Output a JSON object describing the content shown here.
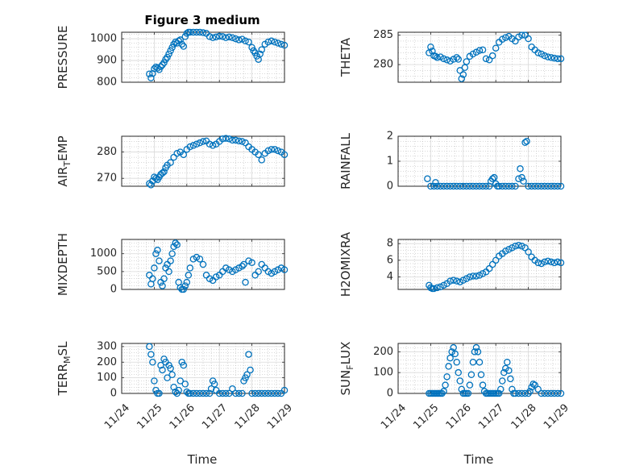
{
  "figure": {
    "title": "Figure 3 medium",
    "x_tick_labels": [
      "11/24",
      "11/25",
      "11/26",
      "11/27",
      "11/28",
      "11/29"
    ],
    "x_label": "Time",
    "marker_color": "#0072BD"
  },
  "chart_data": [
    {
      "type": "scatter",
      "name": "pressure",
      "ylabel": "PRESSURE",
      "xlim": [
        0,
        5
      ],
      "ylim": [
        800,
        1030
      ],
      "yticks": [
        800,
        900,
        1000
      ],
      "x": [
        0.85,
        0.9,
        0.95,
        1.0,
        1.05,
        1.1,
        1.15,
        1.2,
        1.25,
        1.3,
        1.35,
        1.4,
        1.45,
        1.5,
        1.55,
        1.6,
        1.65,
        1.7,
        1.75,
        1.8,
        1.85,
        1.9,
        1.95,
        2.0,
        2.05,
        2.1,
        2.2,
        2.3,
        2.4,
        2.5,
        2.6,
        2.7,
        2.8,
        2.9,
        3.0,
        3.1,
        3.2,
        3.3,
        3.4,
        3.5,
        3.6,
        3.7,
        3.8,
        3.9,
        4.0,
        4.05,
        4.1,
        4.15,
        4.2,
        4.25,
        4.3,
        4.4,
        4.5,
        4.6,
        4.7,
        4.8,
        4.9,
        5.0
      ],
      "y": [
        838,
        820,
        840,
        862,
        870,
        865,
        858,
        872,
        880,
        890,
        905,
        915,
        930,
        945,
        960,
        975,
        985,
        980,
        990,
        995,
        975,
        965,
        1010,
        1025,
        1030,
        1030,
        1030,
        1030,
        1030,
        1028,
        1025,
        1010,
        1005,
        1008,
        1012,
        1010,
        1005,
        1008,
        1005,
        1000,
        995,
        998,
        990,
        985,
        960,
        945,
        935,
        920,
        905,
        930,
        950,
        975,
        985,
        990,
        985,
        980,
        975,
        970
      ]
    },
    {
      "type": "scatter",
      "name": "theta",
      "ylabel": "THETA",
      "xlim": [
        0,
        5
      ],
      "ylim": [
        277,
        285.5
      ],
      "yticks": [
        280,
        285
      ],
      "x": [
        0.95,
        1.0,
        1.05,
        1.1,
        1.15,
        1.2,
        1.3,
        1.4,
        1.5,
        1.6,
        1.7,
        1.8,
        1.85,
        1.9,
        1.95,
        2.0,
        2.05,
        2.1,
        2.2,
        2.3,
        2.4,
        2.5,
        2.6,
        2.7,
        2.8,
        2.9,
        3.0,
        3.1,
        3.2,
        3.3,
        3.4,
        3.5,
        3.6,
        3.7,
        3.8,
        3.9,
        4.0,
        4.1,
        4.2,
        4.3,
        4.4,
        4.5,
        4.6,
        4.7,
        4.8,
        4.9,
        5.0
      ],
      "y": [
        282.0,
        283.0,
        282.3,
        281.5,
        281.4,
        281.2,
        281.3,
        281.0,
        280.8,
        280.6,
        280.9,
        281.2,
        280.9,
        279.0,
        277.6,
        278.3,
        279.5,
        280.5,
        281.4,
        281.8,
        282.1,
        282.4,
        282.5,
        281.0,
        280.8,
        281.5,
        282.8,
        283.8,
        284.3,
        284.6,
        284.8,
        284.4,
        284.0,
        284.7,
        285.0,
        285.0,
        284.4,
        283.0,
        282.5,
        282.0,
        281.8,
        281.5,
        281.3,
        281.2,
        281.1,
        281.0,
        281.0
      ]
    },
    {
      "type": "scatter",
      "name": "air_temp",
      "ylabel": "AIR_TEMP",
      "xlim": [
        0,
        5
      ],
      "ylim": [
        267,
        286
      ],
      "yticks": [
        270,
        280
      ],
      "x": [
        0.85,
        0.9,
        0.95,
        1.0,
        1.05,
        1.1,
        1.15,
        1.2,
        1.25,
        1.3,
        1.35,
        1.4,
        1.5,
        1.6,
        1.7,
        1.8,
        1.9,
        2.0,
        2.1,
        2.2,
        2.3,
        2.4,
        2.5,
        2.6,
        2.7,
        2.8,
        2.9,
        3.0,
        3.1,
        3.2,
        3.3,
        3.4,
        3.5,
        3.6,
        3.7,
        3.8,
        3.9,
        4.0,
        4.1,
        4.2,
        4.3,
        4.4,
        4.5,
        4.6,
        4.7,
        4.8,
        4.9,
        5.0
      ],
      "y": [
        268,
        267.5,
        269,
        270.5,
        270,
        269.5,
        270.5,
        271.5,
        272,
        272.5,
        274,
        275,
        276,
        278,
        279.5,
        280,
        279,
        281,
        282,
        282.5,
        283,
        283.5,
        284,
        284.2,
        283,
        282.5,
        283,
        284,
        285,
        285.2,
        285,
        284.5,
        284.5,
        284.2,
        284,
        283.5,
        282,
        281,
        280,
        279,
        277,
        279.5,
        280.5,
        281,
        281,
        280.5,
        280,
        279
      ]
    },
    {
      "type": "scatter",
      "name": "rainfall",
      "ylabel": "RAINFALL",
      "xlim": [
        0,
        5
      ],
      "ylim": [
        0,
        2
      ],
      "yticks": [
        0,
        1,
        2
      ],
      "x": [
        0.9,
        1.0,
        1.1,
        1.15,
        1.2,
        1.3,
        1.4,
        1.5,
        1.6,
        1.7,
        1.8,
        1.9,
        2.0,
        2.1,
        2.2,
        2.3,
        2.4,
        2.5,
        2.6,
        2.7,
        2.8,
        2.85,
        2.9,
        2.95,
        3.0,
        3.05,
        3.1,
        3.2,
        3.3,
        3.4,
        3.5,
        3.6,
        3.7,
        3.75,
        3.8,
        3.85,
        3.9,
        3.95,
        4.0,
        4.1,
        4.2,
        4.3,
        4.4,
        4.5,
        4.6,
        4.7,
        4.8,
        4.9,
        5.0
      ],
      "y": [
        0.3,
        0,
        0,
        0.15,
        0,
        0,
        0,
        0,
        0,
        0,
        0,
        0,
        0,
        0,
        0,
        0,
        0,
        0,
        0,
        0,
        0,
        0.2,
        0.3,
        0.35,
        0.1,
        0,
        0,
        0,
        0,
        0,
        0,
        0,
        0.3,
        0.7,
        0.35,
        0.2,
        1.75,
        1.8,
        0,
        0,
        0,
        0,
        0,
        0,
        0,
        0,
        0,
        0,
        0
      ]
    },
    {
      "type": "scatter",
      "name": "mixdepth",
      "ylabel": "MIXDEPTH",
      "xlim": [
        0,
        5
      ],
      "ylim": [
        0,
        1400
      ],
      "yticks": [
        0,
        500,
        1000
      ],
      "x": [
        0.85,
        0.9,
        0.95,
        1.0,
        1.05,
        1.1,
        1.15,
        1.2,
        1.25,
        1.3,
        1.35,
        1.4,
        1.45,
        1.5,
        1.55,
        1.6,
        1.65,
        1.7,
        1.75,
        1.8,
        1.85,
        1.9,
        1.95,
        2.0,
        2.05,
        2.1,
        2.2,
        2.3,
        2.4,
        2.5,
        2.6,
        2.7,
        2.8,
        2.9,
        3.0,
        3.1,
        3.2,
        3.3,
        3.4,
        3.5,
        3.6,
        3.7,
        3.75,
        3.8,
        3.9,
        4.0,
        4.1,
        4.2,
        4.3,
        4.4,
        4.5,
        4.6,
        4.7,
        4.8,
        4.9,
        5.0
      ],
      "y": [
        400,
        150,
        300,
        600,
        1000,
        1100,
        800,
        200,
        100,
        300,
        600,
        700,
        500,
        800,
        1000,
        1200,
        1300,
        1250,
        200,
        50,
        0,
        0,
        100,
        200,
        400,
        600,
        850,
        900,
        850,
        700,
        400,
        300,
        250,
        350,
        400,
        500,
        600,
        550,
        500,
        550,
        600,
        650,
        700,
        200,
        800,
        750,
        400,
        500,
        700,
        600,
        500,
        450,
        500,
        550,
        600,
        550
      ]
    },
    {
      "type": "scatter",
      "name": "h2omixra",
      "ylabel": "H2OMIXRA",
      "xlim": [
        0,
        5
      ],
      "ylim": [
        2.5,
        8.5
      ],
      "yticks": [
        4,
        6,
        8
      ],
      "x": [
        0.95,
        1.0,
        1.05,
        1.1,
        1.2,
        1.3,
        1.4,
        1.5,
        1.6,
        1.7,
        1.8,
        1.9,
        2.0,
        2.1,
        2.2,
        2.3,
        2.4,
        2.5,
        2.6,
        2.7,
        2.8,
        2.9,
        3.0,
        3.1,
        3.2,
        3.3,
        3.4,
        3.5,
        3.6,
        3.7,
        3.8,
        3.9,
        4.0,
        4.1,
        4.2,
        4.3,
        4.4,
        4.5,
        4.6,
        4.7,
        4.8,
        4.9,
        5.0
      ],
      "y": [
        3.0,
        2.7,
        2.6,
        2.6,
        2.7,
        2.8,
        3.0,
        3.2,
        3.5,
        3.6,
        3.5,
        3.4,
        3.6,
        3.8,
        4.0,
        4.1,
        4.1,
        4.2,
        4.4,
        4.6,
        5.0,
        5.5,
        6.0,
        6.5,
        6.8,
        7.1,
        7.3,
        7.5,
        7.7,
        7.8,
        7.7,
        7.5,
        7.0,
        6.4,
        6.0,
        5.7,
        5.6,
        5.8,
        5.9,
        5.8,
        5.7,
        5.8,
        5.7
      ]
    },
    {
      "type": "scatter",
      "name": "terr_msl",
      "ylabel": "TERR_MSL",
      "xlim": [
        0,
        5
      ],
      "ylim": [
        0,
        320
      ],
      "yticks": [
        0,
        100,
        200,
        300
      ],
      "x": [
        0.85,
        0.9,
        0.95,
        1.0,
        1.05,
        1.1,
        1.15,
        1.2,
        1.25,
        1.3,
        1.35,
        1.4,
        1.45,
        1.5,
        1.55,
        1.6,
        1.65,
        1.7,
        1.75,
        1.8,
        1.85,
        1.9,
        1.95,
        2.0,
        2.05,
        2.1,
        2.2,
        2.3,
        2.4,
        2.5,
        2.6,
        2.7,
        2.75,
        2.8,
        2.85,
        2.9,
        3.0,
        3.1,
        3.2,
        3.3,
        3.4,
        3.5,
        3.6,
        3.7,
        3.75,
        3.8,
        3.85,
        3.9,
        3.95,
        4.0,
        4.1,
        4.2,
        4.3,
        4.4,
        4.5,
        4.6,
        4.7,
        4.8,
        4.9,
        5.0
      ],
      "y": [
        300,
        250,
        200,
        80,
        20,
        0,
        0,
        180,
        150,
        220,
        200,
        100,
        180,
        160,
        120,
        40,
        10,
        0,
        20,
        80,
        200,
        180,
        60,
        10,
        0,
        0,
        0,
        0,
        0,
        0,
        0,
        0,
        30,
        80,
        60,
        20,
        0,
        0,
        0,
        0,
        30,
        0,
        0,
        0,
        80,
        100,
        120,
        250,
        150,
        0,
        0,
        0,
        0,
        0,
        0,
        0,
        0,
        0,
        0,
        20
      ]
    },
    {
      "type": "scatter",
      "name": "sun_flux",
      "ylabel": "SUN_FLUX",
      "xlim": [
        0,
        5
      ],
      "ylim": [
        0,
        240
      ],
      "yticks": [
        0,
        100,
        200
      ],
      "x": [
        0.95,
        1.0,
        1.05,
        1.1,
        1.15,
        1.2,
        1.25,
        1.3,
        1.35,
        1.4,
        1.45,
        1.5,
        1.55,
        1.6,
        1.65,
        1.7,
        1.75,
        1.8,
        1.85,
        1.9,
        1.95,
        2.0,
        2.05,
        2.1,
        2.15,
        2.2,
        2.25,
        2.3,
        2.35,
        2.4,
        2.45,
        2.5,
        2.55,
        2.6,
        2.65,
        2.7,
        2.75,
        2.8,
        2.85,
        2.9,
        2.95,
        3.0,
        3.05,
        3.1,
        3.15,
        3.2,
        3.25,
        3.3,
        3.35,
        3.4,
        3.45,
        3.5,
        3.55,
        3.6,
        3.7,
        3.8,
        3.9,
        4.0,
        4.05,
        4.1,
        4.15,
        4.2,
        4.3,
        4.4,
        4.5,
        4.6,
        4.7,
        4.8,
        4.9,
        5.0
      ],
      "y": [
        0,
        0,
        0,
        0,
        0,
        0,
        0,
        0,
        0,
        10,
        40,
        80,
        130,
        170,
        200,
        220,
        190,
        150,
        100,
        60,
        20,
        0,
        0,
        0,
        0,
        40,
        90,
        150,
        200,
        220,
        200,
        150,
        90,
        40,
        10,
        0,
        0,
        0,
        0,
        0,
        0,
        0,
        0,
        0,
        20,
        60,
        100,
        120,
        150,
        110,
        70,
        20,
        0,
        0,
        0,
        0,
        0,
        0,
        10,
        30,
        45,
        40,
        20,
        0,
        0,
        0,
        0,
        0,
        0,
        0
      ]
    }
  ]
}
